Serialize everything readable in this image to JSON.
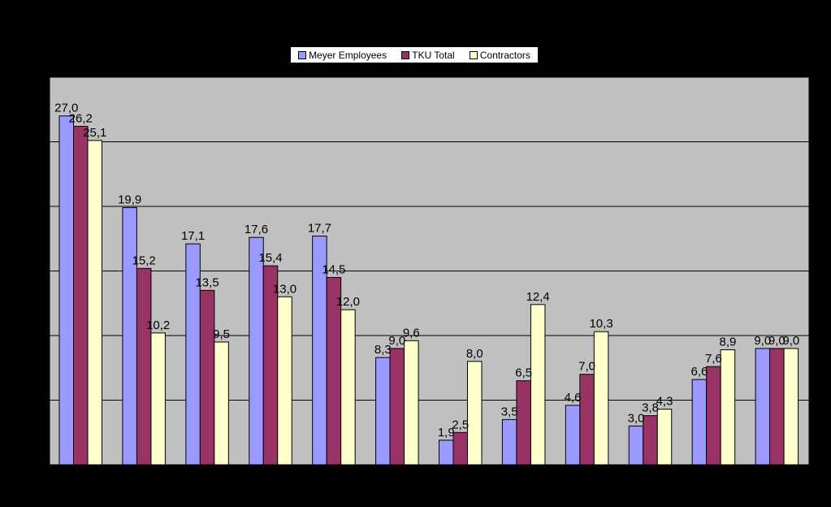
{
  "chart_data": {
    "type": "bar",
    "title": "",
    "xlabel": "",
    "ylabel": "",
    "ylim": [
      0,
      30
    ],
    "grid": true,
    "legend_position": "top",
    "categories": [
      "",
      "",
      "",
      "",
      "",
      "",
      "",
      "",
      "",
      "",
      "",
      ""
    ],
    "series": [
      {
        "name": "Meyer Employees",
        "color": "#9999ff",
        "values": [
          27.0,
          19.9,
          17.1,
          17.6,
          17.7,
          8.3,
          1.9,
          3.5,
          4.6,
          3.0,
          6.6,
          9.0
        ],
        "labels": [
          "27,0",
          "19,9",
          "17,1",
          "17,6",
          "17,7",
          "8,3",
          "1,9",
          "3,5",
          "4,6",
          "3,0",
          "6,6",
          "9,0"
        ]
      },
      {
        "name": "TKU Total",
        "color": "#993366",
        "values": [
          26.2,
          15.2,
          13.5,
          15.4,
          14.5,
          9.0,
          2.5,
          6.5,
          7.0,
          3.8,
          7.6,
          9.0
        ],
        "labels": [
          "26,2",
          "15,2",
          "13,5",
          "15,4",
          "14,5",
          "9,0",
          "2,5",
          "6,5",
          "7,0",
          "3,8",
          "7,6",
          "9,0"
        ]
      },
      {
        "name": "Contractors",
        "color": "#ffffcc",
        "values": [
          25.1,
          10.2,
          9.5,
          13.0,
          12.0,
          9.6,
          8.0,
          12.4,
          10.3,
          4.3,
          8.9,
          9.0
        ],
        "labels": [
          "25,1",
          "10,2",
          "9,5",
          "13,0",
          "12,0",
          "9,6",
          "8,0",
          "12,4",
          "10,3",
          "4,3",
          "8,9",
          "9,0"
        ]
      }
    ],
    "plot_background": "#c0c0c0",
    "page_background": "#000000"
  }
}
